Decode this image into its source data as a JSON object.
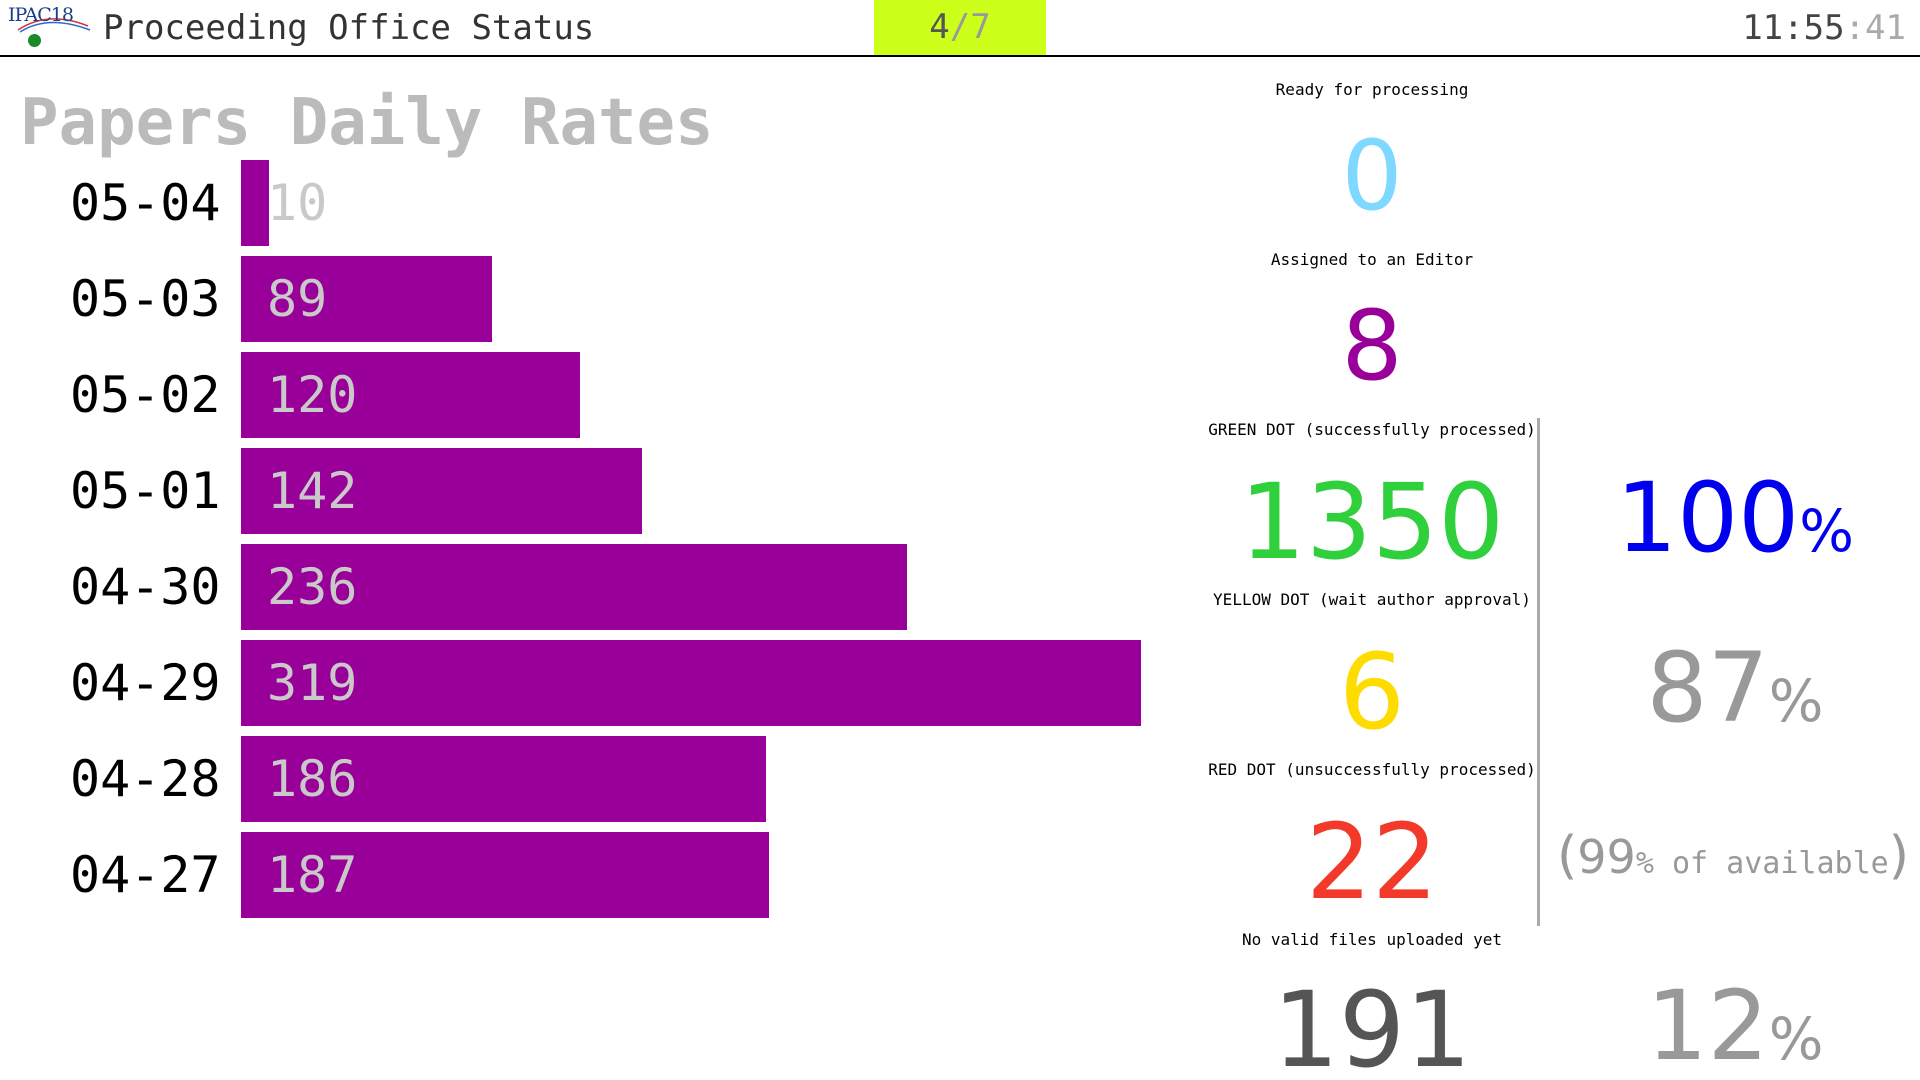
{
  "header": {
    "logo_text": "IPAC18",
    "title": "Proceeding Office Status",
    "page": {
      "current": "4",
      "separator": "/",
      "total": "7"
    },
    "clock": {
      "hours_minutes": "11:55",
      "seconds_sep": ":",
      "seconds": "41"
    }
  },
  "chart_data": {
    "type": "bar",
    "orientation": "horizontal",
    "title": "Papers Daily Rates",
    "categories": [
      "05-04",
      "05-03",
      "05-02",
      "05-01",
      "04-30",
      "04-29",
      "04-28",
      "04-27"
    ],
    "values": [
      10,
      89,
      120,
      142,
      236,
      319,
      186,
      187
    ],
    "bar_color": "#990099",
    "value_label_color": "#c9c9c9"
  },
  "stats": {
    "ready": {
      "label": "Ready for processing",
      "value": "0",
      "color": "#7fd8ff"
    },
    "assigned": {
      "label": "Assigned to an Editor",
      "value": "8",
      "color": "#990099"
    },
    "green": {
      "label": "GREEN DOT (successfully processed)",
      "value": "1350",
      "color": "#2fd03c",
      "pct": "100",
      "pct_color": "#0000ee"
    },
    "yellow": {
      "label": "YELLOW DOT (wait author approval)",
      "value": "6",
      "color": "#ffdc00",
      "pct": "87",
      "pct_color": "#999999"
    },
    "red": {
      "label": "RED DOT (unsuccessfully processed)",
      "value": "22",
      "color": "#f33a2a",
      "note_open": "(",
      "note_num": "99",
      "note_pct": "%",
      "note_text": " of available",
      "note_close": ")"
    },
    "novalid": {
      "label": "No valid files uploaded yet",
      "value": "191",
      "color": "#555555",
      "pct": "12",
      "pct_color": "#999999"
    },
    "percent_symbol": "%"
  }
}
